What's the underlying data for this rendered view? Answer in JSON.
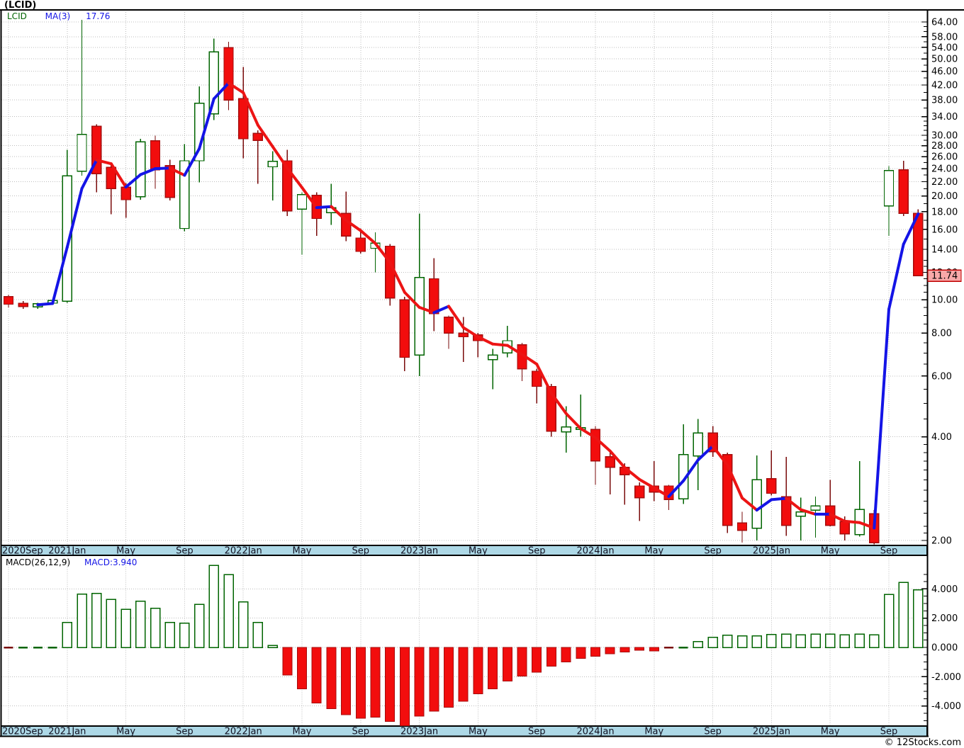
{
  "window": {
    "title": "(LCID)"
  },
  "legend": {
    "symbol": "LCID",
    "ma_label": "MA(3)",
    "ma_value": "17.76"
  },
  "macd_panel": {
    "label": "MACD(26,12,9)",
    "value_label": "MACD:3.940"
  },
  "footer": {
    "copyright": "© 12Stocks.com"
  },
  "price_axis": {
    "tick_labels": [
      "64.00",
      "58.00",
      "54.00",
      "50.00",
      "46.00",
      "42.00",
      "38.00",
      "34.00",
      "30.00",
      "28.00",
      "26.00",
      "24.00",
      "22.00",
      "20.00",
      "18.00",
      "16.00",
      "14.00",
      "12.00",
      "10.00",
      "8.00",
      "6.00",
      "4.00",
      "2.00"
    ],
    "tick_values": [
      64,
      58,
      54,
      50,
      46,
      42,
      38,
      34,
      30,
      28,
      26,
      24,
      22,
      20,
      18,
      16,
      14,
      12,
      10,
      8,
      6,
      4,
      2
    ],
    "current_label": "11.74",
    "current_value": 11.74
  },
  "macd_axis": {
    "tick_labels": [
      "4.000",
      "2.000",
      "0.000",
      "-2.000",
      "-4.000"
    ],
    "tick_values": [
      4,
      2,
      0,
      -2,
      -4
    ]
  },
  "date_axis": {
    "labels": [
      {
        "index": 0,
        "text": "2020Sep"
      },
      {
        "index": 4,
        "text": "2021Jan"
      },
      {
        "index": 8,
        "text": "May"
      },
      {
        "index": 12,
        "text": "Sep"
      },
      {
        "index": 16,
        "text": "2022Jan"
      },
      {
        "index": 20,
        "text": "May"
      },
      {
        "index": 24,
        "text": "Sep"
      },
      {
        "index": 28,
        "text": "2023Jan"
      },
      {
        "index": 32,
        "text": "May"
      },
      {
        "index": 36,
        "text": "Sep"
      },
      {
        "index": 40,
        "text": "2024Jan"
      },
      {
        "index": 44,
        "text": "May"
      },
      {
        "index": 48,
        "text": "Sep"
      },
      {
        "index": 52,
        "text": "2025Jan"
      },
      {
        "index": 56,
        "text": "May"
      },
      {
        "index": 60,
        "text": "Sep"
      }
    ]
  },
  "colors": {
    "up": "#006400",
    "up_fill": "#ffffff",
    "down_fill": "#f20d0d",
    "down_stroke": "#a50d0d",
    "down_wick": "#7a0b0b",
    "ma_up": "#1414e6",
    "ma_down": "#ec1414",
    "grid": "#bdbdbd",
    "frame": "#000000",
    "strip": "#add8e6",
    "badge_fill": "#f8a8a8",
    "badge_border": "#c00000",
    "axis_text": "#000000"
  },
  "chart_data": [
    {
      "type": "candlestick",
      "symbol": "LCID",
      "title": "(LCID)",
      "scale": "log",
      "ylim": [
        1.95,
        66
      ],
      "ma_period": 3,
      "ma_last": 17.76,
      "last_price": 11.74,
      "months": [
        "2020-09",
        "2020-10",
        "2020-11",
        "2020-12",
        "2021-01",
        "2021-02",
        "2021-03",
        "2021-04",
        "2021-05",
        "2021-06",
        "2021-07",
        "2021-08",
        "2021-09",
        "2021-10",
        "2021-11",
        "2021-12",
        "2022-01",
        "2022-02",
        "2022-03",
        "2022-04",
        "2022-05",
        "2022-06",
        "2022-07",
        "2022-08",
        "2022-09",
        "2022-10",
        "2022-11",
        "2022-12",
        "2023-01",
        "2023-02",
        "2023-03",
        "2023-04",
        "2023-05",
        "2023-06",
        "2023-07",
        "2023-08",
        "2023-09",
        "2023-10",
        "2023-11",
        "2023-12",
        "2024-01",
        "2024-02",
        "2024-03",
        "2024-04",
        "2024-05",
        "2024-06",
        "2024-07",
        "2024-08",
        "2024-09",
        "2024-10",
        "2024-11",
        "2024-12",
        "2025-01",
        "2025-02",
        "2025-03",
        "2025-04",
        "2025-05",
        "2025-06",
        "2025-07",
        "2025-08",
        "2025-09",
        "2025-10",
        "2025-11"
      ],
      "ohlc": [
        [
          10.2,
          10.35,
          9.5,
          9.7
        ],
        [
          9.75,
          9.9,
          9.4,
          9.55
        ],
        [
          9.52,
          9.8,
          9.4,
          9.74
        ],
        [
          9.77,
          10.05,
          9.7,
          9.95
        ],
        [
          9.9,
          27.2,
          9.8,
          22.9
        ],
        [
          23.6,
          64.9,
          22.9,
          30.2
        ],
        [
          31.9,
          32.3,
          20.5,
          23.2
        ],
        [
          24.2,
          24.8,
          17.7,
          21.0
        ],
        [
          21.2,
          21.8,
          17.3,
          19.5
        ],
        [
          19.9,
          29.3,
          19.5,
          28.7
        ],
        [
          28.9,
          29.9,
          21.0,
          23.8
        ],
        [
          24.5,
          25.5,
          19.4,
          19.8
        ],
        [
          16.1,
          28.3,
          15.8,
          25.3
        ],
        [
          25.3,
          41.6,
          21.9,
          37.2
        ],
        [
          34.6,
          57.3,
          33.2,
          52.4
        ],
        [
          53.9,
          56.0,
          35.5,
          38.0
        ],
        [
          38.3,
          47.4,
          25.7,
          29.3
        ],
        [
          30.4,
          31.0,
          21.7,
          29.0
        ],
        [
          24.3,
          27.0,
          19.4,
          25.2
        ],
        [
          25.3,
          27.2,
          17.5,
          18.1
        ],
        [
          18.3,
          20.5,
          13.5,
          20.2
        ],
        [
          20.1,
          20.5,
          15.3,
          17.2
        ],
        [
          17.9,
          21.7,
          16.5,
          18.5
        ],
        [
          17.8,
          20.6,
          14.8,
          15.3
        ],
        [
          15.1,
          16.1,
          13.6,
          13.8
        ],
        [
          14.1,
          15.7,
          12.0,
          14.6
        ],
        [
          14.3,
          14.5,
          9.6,
          10.1
        ],
        [
          10.0,
          10.2,
          6.2,
          6.8
        ],
        [
          6.9,
          17.8,
          6.0,
          11.6
        ],
        [
          11.5,
          13.2,
          8.1,
          9.1
        ],
        [
          8.9,
          9.0,
          7.2,
          8.0
        ],
        [
          8.0,
          8.9,
          6.6,
          7.8
        ],
        [
          7.9,
          8.0,
          6.8,
          7.6
        ],
        [
          6.7,
          7.2,
          5.5,
          6.9
        ],
        [
          7.0,
          8.4,
          6.8,
          7.6
        ],
        [
          7.4,
          7.5,
          5.8,
          6.3
        ],
        [
          6.2,
          6.3,
          5.0,
          5.6
        ],
        [
          5.6,
          5.7,
          4.0,
          4.15
        ],
        [
          4.13,
          4.9,
          3.6,
          4.27
        ],
        [
          4.2,
          5.3,
          4.0,
          4.25
        ],
        [
          4.2,
          4.3,
          2.9,
          3.4
        ],
        [
          3.5,
          3.6,
          2.72,
          3.26
        ],
        [
          3.26,
          3.35,
          2.54,
          3.1
        ],
        [
          2.88,
          2.95,
          2.28,
          2.66
        ],
        [
          2.88,
          3.4,
          2.6,
          2.76
        ],
        [
          2.88,
          2.9,
          2.45,
          2.63
        ],
        [
          2.64,
          4.35,
          2.55,
          3.55
        ],
        [
          3.52,
          4.5,
          2.8,
          4.1
        ],
        [
          4.1,
          4.3,
          3.5,
          3.62
        ],
        [
          3.55,
          3.6,
          2.1,
          2.21
        ],
        [
          2.25,
          2.42,
          1.97,
          2.14
        ],
        [
          2.17,
          3.53,
          2.0,
          3.0
        ],
        [
          3.02,
          3.65,
          2.7,
          2.74
        ],
        [
          2.68,
          3.5,
          2.06,
          2.21
        ],
        [
          2.35,
          2.66,
          2.0,
          2.42
        ],
        [
          2.45,
          2.68,
          2.04,
          2.52
        ],
        [
          2.52,
          3.0,
          2.2,
          2.21
        ],
        [
          2.27,
          2.35,
          2.0,
          2.09
        ],
        [
          2.08,
          3.4,
          2.05,
          2.46
        ],
        [
          2.39,
          2.45,
          1.95,
          1.97
        ],
        [
          18.7,
          24.4,
          15.3,
          23.7
        ],
        [
          23.8,
          25.3,
          17.5,
          17.8
        ],
        [
          17.8,
          18.3,
          11.7,
          11.74
        ]
      ]
    },
    {
      "type": "bar",
      "title": "MACD(26,12,9)",
      "last": 3.94,
      "ylim": [
        -5.6,
        5.8
      ],
      "values": [
        -0.05,
        0.02,
        0.02,
        0.03,
        1.7,
        3.64,
        3.7,
        3.28,
        2.6,
        3.15,
        2.67,
        1.7,
        1.66,
        2.93,
        5.6,
        4.97,
        3.12,
        1.7,
        0.13,
        -1.89,
        -2.83,
        -3.8,
        -4.19,
        -4.61,
        -4.84,
        -4.77,
        -5.05,
        -5.45,
        -4.69,
        -4.37,
        -4.08,
        -3.67,
        -3.16,
        -2.83,
        -2.3,
        -1.97,
        -1.7,
        -1.28,
        -1.0,
        -0.76,
        -0.6,
        -0.44,
        -0.32,
        -0.19,
        -0.25,
        -0.1,
        0.05,
        0.4,
        0.7,
        0.83,
        0.78,
        0.78,
        0.89,
        0.92,
        0.86,
        0.92,
        0.92,
        0.86,
        0.92,
        0.86,
        3.61,
        4.45,
        3.94
      ]
    }
  ]
}
